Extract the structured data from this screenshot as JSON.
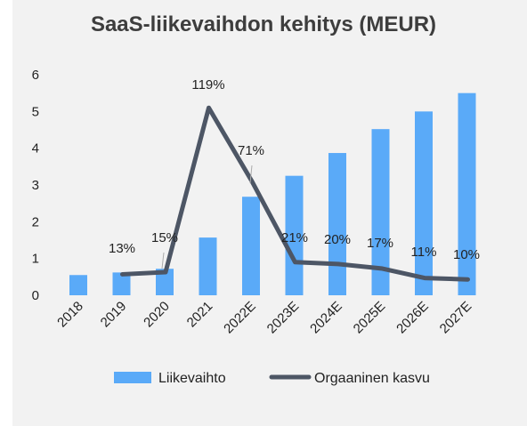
{
  "chart_data": {
    "type": "bar",
    "title": "SaaS-liikevaihdon kehitys (MEUR)",
    "categories": [
      "2018",
      "2019",
      "2020",
      "2021",
      "2022E",
      "2023E",
      "2024E",
      "2025E",
      "2026E",
      "2027E"
    ],
    "series": [
      {
        "name": "Liikevaihto",
        "type": "bar",
        "color": "#5aaaf8",
        "values": [
          0.55,
          0.62,
          0.72,
          1.57,
          2.68,
          3.25,
          3.87,
          4.52,
          5.0,
          5.5
        ]
      },
      {
        "name": "Orgaaninen kasvu",
        "type": "line",
        "color": "#4d5665",
        "values": [
          null,
          0.57,
          0.63,
          5.1,
          3.1,
          0.9,
          0.85,
          0.73,
          0.47,
          0.43
        ],
        "labels": [
          "",
          "13%",
          "15%",
          "119%",
          "71%",
          "21%",
          "20%",
          "17%",
          "11%",
          "10%"
        ]
      }
    ],
    "ylim": [
      0,
      6
    ],
    "yticks": [
      0,
      1,
      2,
      3,
      4,
      5,
      6
    ],
    "grid": false,
    "legend": "bottom"
  }
}
